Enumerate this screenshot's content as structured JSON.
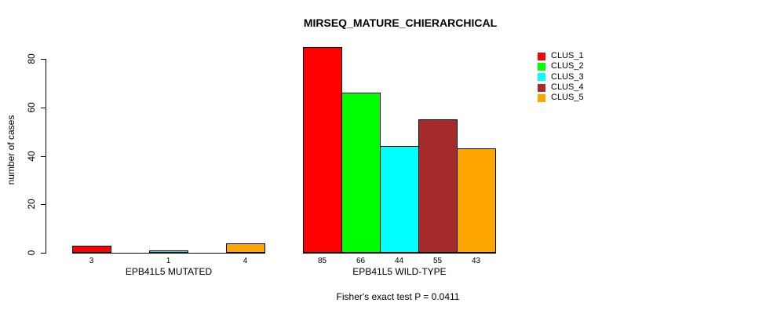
{
  "chart_data": {
    "type": "bar",
    "title": "MIRSEQ_MATURE_CHIERARCHICAL",
    "ylabel": "number of cases",
    "xlabel": "",
    "ylim": [
      0,
      88
    ],
    "yticks": [
      0,
      20,
      40,
      60,
      80
    ],
    "grid": false,
    "legend_position": "top-right",
    "categories": [
      "EPB41L5 MUTATED",
      "EPB41L5 WILD-TYPE"
    ],
    "series": [
      {
        "name": "CLUS_1",
        "color": "#FF0000",
        "values": [
          3,
          85
        ]
      },
      {
        "name": "CLUS_2",
        "color": "#00FF00",
        "values": [
          0,
          66
        ]
      },
      {
        "name": "CLUS_3",
        "color": "#00FFFF",
        "values": [
          1,
          44
        ]
      },
      {
        "name": "CLUS_4",
        "color": "#A52A2A",
        "values": [
          0,
          55
        ]
      },
      {
        "name": "CLUS_5",
        "color": "#FFA500",
        "values": [
          4,
          43
        ]
      }
    ],
    "value_labels": [
      [
        "3",
        "",
        "1",
        "",
        "4"
      ],
      [
        "85",
        "66",
        "44",
        "55",
        "43"
      ]
    ],
    "annotation": "Fisher's exact test P = 0.0411",
    "axis_color": "#000000",
    "background_color": "#FFFFFF"
  }
}
